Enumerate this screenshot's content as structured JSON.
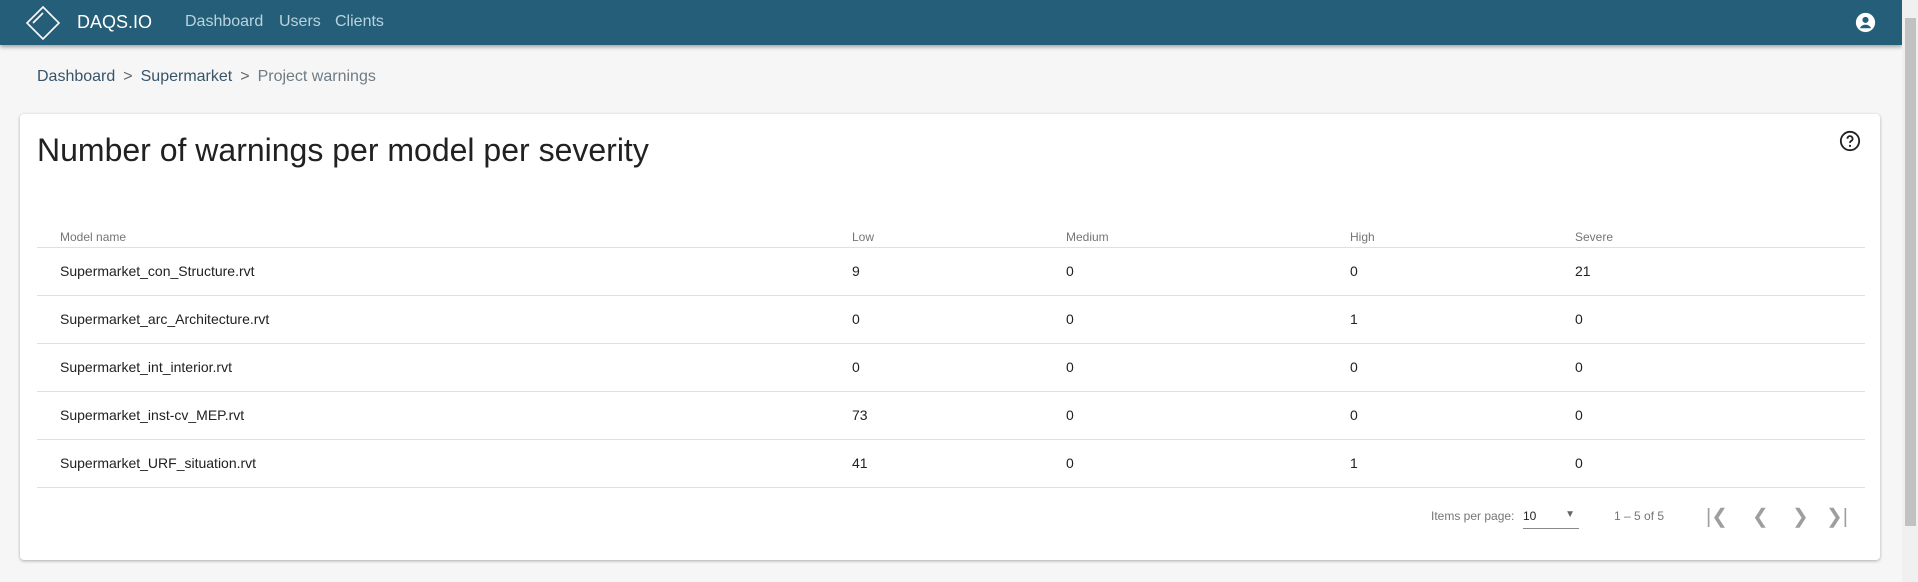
{
  "header": {
    "brand": "DAQS.IO",
    "nav": [
      "Dashboard",
      "Users",
      "Clients"
    ]
  },
  "breadcrumb": [
    "Dashboard",
    "Supermarket",
    "Project warnings"
  ],
  "card": {
    "title": "Number of warnings per model per severity"
  },
  "table": {
    "columns": [
      "Model name",
      "Low",
      "Medium",
      "High",
      "Severe"
    ],
    "rows": [
      [
        "Supermarket_con_Structure.rvt",
        "9",
        "0",
        "0",
        "21"
      ],
      [
        "Supermarket_arc_Architecture.rvt",
        "0",
        "0",
        "1",
        "0"
      ],
      [
        "Supermarket_int_interior.rvt",
        "0",
        "0",
        "0",
        "0"
      ],
      [
        "Supermarket_inst-cv_MEP.rvt",
        "73",
        "0",
        "0",
        "0"
      ],
      [
        "Supermarket_URF_situation.rvt",
        "41",
        "0",
        "1",
        "0"
      ]
    ]
  },
  "paginator": {
    "items_per_page_label": "Items per page:",
    "items_per_page": "10",
    "range": "1 – 5 of 5"
  },
  "colors": {
    "header": "#255e78"
  }
}
